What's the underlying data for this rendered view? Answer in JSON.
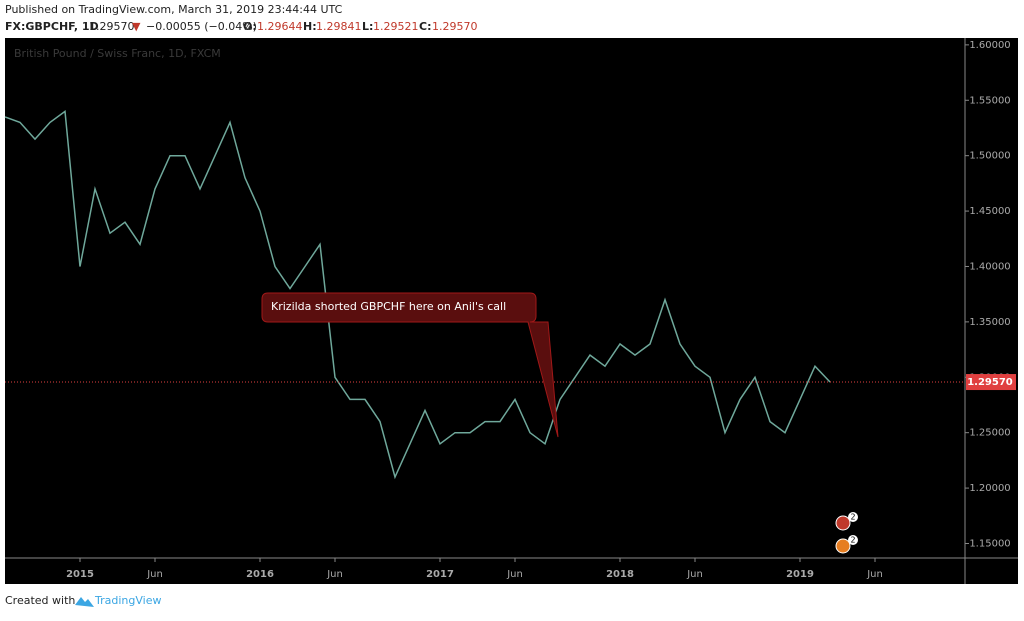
{
  "header": {
    "published": "Published on TradingView.com, March 31, 2019 23:44:44 UTC",
    "symbol": "FX:GBPCHF, 1D",
    "last": "1.29570",
    "arrow": "▼",
    "change": "−0.00055 (−0.04%)",
    "ohlc": [
      {
        "label": "O:",
        "value": "1.29644"
      },
      {
        "label": "H:",
        "value": "1.29841"
      },
      {
        "label": "L:",
        "value": "1.29521"
      },
      {
        "label": "C:",
        "value": "1.29570"
      }
    ]
  },
  "chart_data": {
    "type": "line",
    "watermark": "British Pound / Swiss Franc, 1D, FXCM",
    "color": "#6fa89b",
    "x": [
      "2014-08",
      "2014-09",
      "2014-10",
      "2014-11",
      "2014-12",
      "2015-01",
      "2015-02",
      "2015-03",
      "2015-04",
      "2015-05",
      "2015-06",
      "2015-07",
      "2015-08",
      "2015-09",
      "2015-10",
      "2015-11",
      "2015-12",
      "2016-01",
      "2016-02",
      "2016-03",
      "2016-04",
      "2016-05",
      "2016-06",
      "2016-07",
      "2016-08",
      "2016-09",
      "2016-10",
      "2016-11",
      "2016-12",
      "2017-01",
      "2017-02",
      "2017-03",
      "2017-04",
      "2017-05",
      "2017-06",
      "2017-07",
      "2017-08",
      "2017-09",
      "2017-10",
      "2017-11",
      "2017-12",
      "2018-01",
      "2018-02",
      "2018-03",
      "2018-04",
      "2018-05",
      "2018-06",
      "2018-07",
      "2018-08",
      "2018-09",
      "2018-10",
      "2018-11",
      "2018-12",
      "2019-01",
      "2019-02",
      "2019-03"
    ],
    "values": [
      1.535,
      1.53,
      1.515,
      1.53,
      1.54,
      1.4,
      1.47,
      1.43,
      1.44,
      1.42,
      1.47,
      1.5,
      1.5,
      1.47,
      1.5,
      1.53,
      1.48,
      1.45,
      1.4,
      1.38,
      1.4,
      1.42,
      1.3,
      1.28,
      1.28,
      1.26,
      1.21,
      1.24,
      1.27,
      1.24,
      1.25,
      1.25,
      1.26,
      1.26,
      1.28,
      1.25,
      1.24,
      1.28,
      1.3,
      1.32,
      1.31,
      1.33,
      1.32,
      1.33,
      1.37,
      1.33,
      1.31,
      1.3,
      1.25,
      1.28,
      1.3,
      1.26,
      1.25,
      1.28,
      1.31,
      1.2957
    ],
    "xlim": [
      "2014-08",
      "2019-12"
    ],
    "xticks": [
      {
        "value": "2015-01",
        "label": "2015"
      },
      {
        "value": "2015-06",
        "label": "Jun"
      },
      {
        "value": "2016-01",
        "label": "2016"
      },
      {
        "value": "2016-06",
        "label": "Jun"
      },
      {
        "value": "2017-01",
        "label": "2017"
      },
      {
        "value": "2017-06",
        "label": "Jun"
      },
      {
        "value": "2018-01",
        "label": "2018"
      },
      {
        "value": "2018-06",
        "label": "Jun"
      },
      {
        "value": "2019-01",
        "label": "2019"
      },
      {
        "value": "2019-06",
        "label": "Jun"
      }
    ],
    "ylim": [
      1.1369,
      1.6062
    ],
    "yticks": [
      {
        "value": 1.15,
        "label": "1.15000"
      },
      {
        "value": 1.2,
        "label": "1.20000"
      },
      {
        "value": 1.25,
        "label": "1.25000"
      },
      {
        "value": 1.3,
        "label": "1.30000"
      },
      {
        "value": 1.35,
        "label": "1.35000"
      },
      {
        "value": 1.4,
        "label": "1.40000"
      },
      {
        "value": 1.45,
        "label": "1.45000"
      },
      {
        "value": 1.5,
        "label": "1.50000"
      },
      {
        "value": 1.55,
        "label": "1.55000"
      },
      {
        "value": 1.6,
        "label": "1.60000"
      }
    ],
    "last_price": {
      "value": 1.2957,
      "label": "1.29570"
    },
    "annotation": "Krizilda shorted GBPCHF here on Anil's call",
    "event_badges": [
      "2",
      "2"
    ]
  },
  "footer": {
    "created": "Created with",
    "brand": "TradingView"
  }
}
